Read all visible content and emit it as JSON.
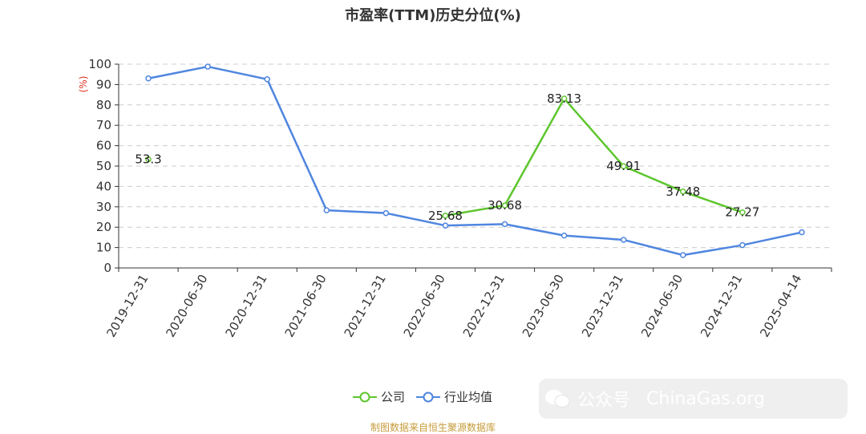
{
  "title": "市盈率(TTM)历史分位(%)",
  "source": "制图数据来自恒生聚源数据库",
  "watermark": {
    "account": "公众号",
    "site": "ChinaGas.org"
  },
  "chart_data": {
    "type": "line",
    "title": "市盈率(TTM)历史分位(%)",
    "ylabel": "(%)",
    "ylim": [
      0,
      100
    ],
    "yticks": [
      0,
      10,
      20,
      30,
      40,
      50,
      60,
      70,
      80,
      90,
      100
    ],
    "grid": true,
    "legend_position": "bottom",
    "categories": [
      "2019-12-31",
      "2020-06-30",
      "2020-12-31",
      "2021-06-30",
      "2021-12-31",
      "2022-06-30",
      "2022-12-31",
      "2023-06-30",
      "2023-12-31",
      "2024-06-30",
      "2024-12-31",
      "2025-04-14"
    ],
    "series": [
      {
        "name": "公司",
        "color": "#5ec62e",
        "show_labels": true,
        "values": [
          53.3,
          null,
          null,
          null,
          null,
          25.68,
          30.68,
          83.13,
          49.91,
          37.48,
          27.27,
          null
        ]
      },
      {
        "name": "行业均值",
        "color": "#4f86e0",
        "show_labels": false,
        "values": [
          93.0,
          98.8,
          92.6,
          28.3,
          26.9,
          20.8,
          21.5,
          15.9,
          13.8,
          6.3,
          11.2,
          17.5
        ]
      }
    ]
  }
}
